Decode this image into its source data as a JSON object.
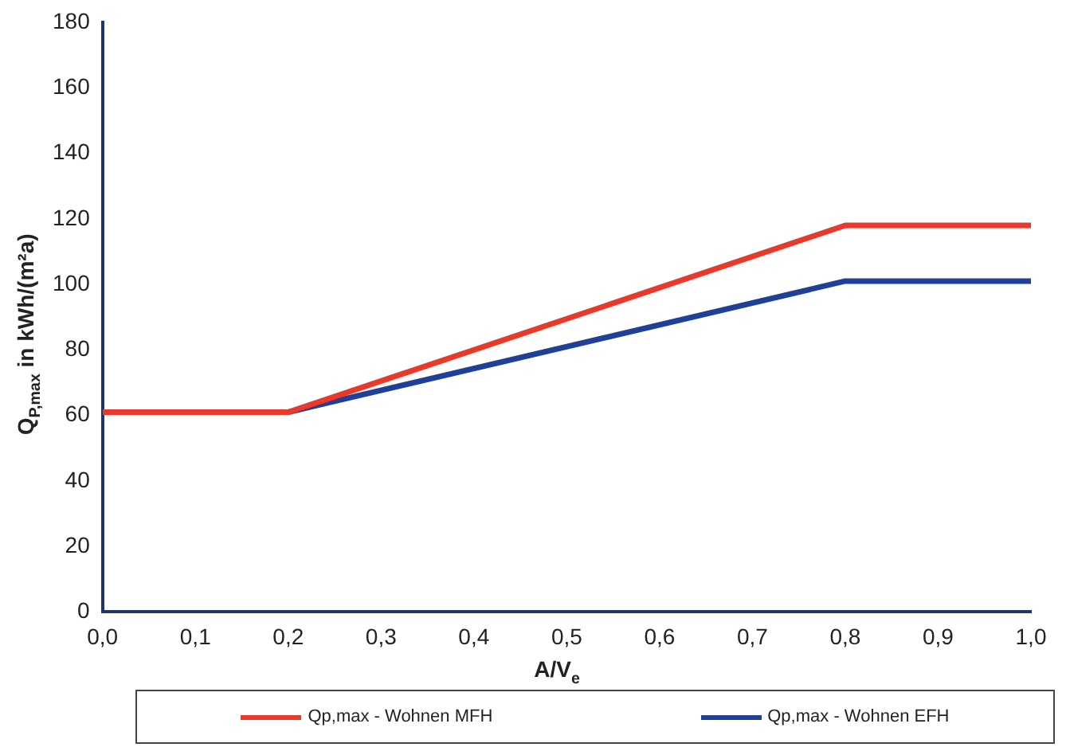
{
  "chart_data": {
    "type": "line",
    "xlabel": "A/V$_{e}$",
    "ylabel": "Q$_{P,max}$ in kWh/(m²a)",
    "xlim": [
      0,
      1
    ],
    "xticks": [
      {
        "value": 0,
        "label": "0,0"
      },
      {
        "value": 0.1,
        "label": "0,1"
      },
      {
        "value": 0.2,
        "label": "0,2"
      },
      {
        "value": 0.3,
        "label": "0,3"
      },
      {
        "value": 0.4,
        "label": "0,4"
      },
      {
        "value": 0.5,
        "label": "0,5"
      },
      {
        "value": 0.6,
        "label": "0,6"
      },
      {
        "value": 0.7,
        "label": "0,7"
      },
      {
        "value": 0.8,
        "label": "0,8"
      },
      {
        "value": 0.9,
        "label": "0,9"
      },
      {
        "value": 1,
        "label": "1,0"
      }
    ],
    "ylim": [
      0,
      180
    ],
    "yticks": [
      0,
      20,
      40,
      60,
      80,
      100,
      120,
      140,
      160,
      180
    ],
    "x": [
      0,
      0.2,
      0.8,
      1
    ],
    "series": [
      {
        "name": "Qp,max - Wohnen MFH",
        "color": "#e8392b",
        "values": [
          61,
          61,
          118,
          118
        ]
      },
      {
        "name": "Qp,max - Wohnen EFH",
        "color": "#1f3f99",
        "values": [
          61,
          61,
          101,
          101
        ]
      }
    ],
    "grid": false,
    "legend": "bottom",
    "marker": "none",
    "line_style": "solid"
  }
}
